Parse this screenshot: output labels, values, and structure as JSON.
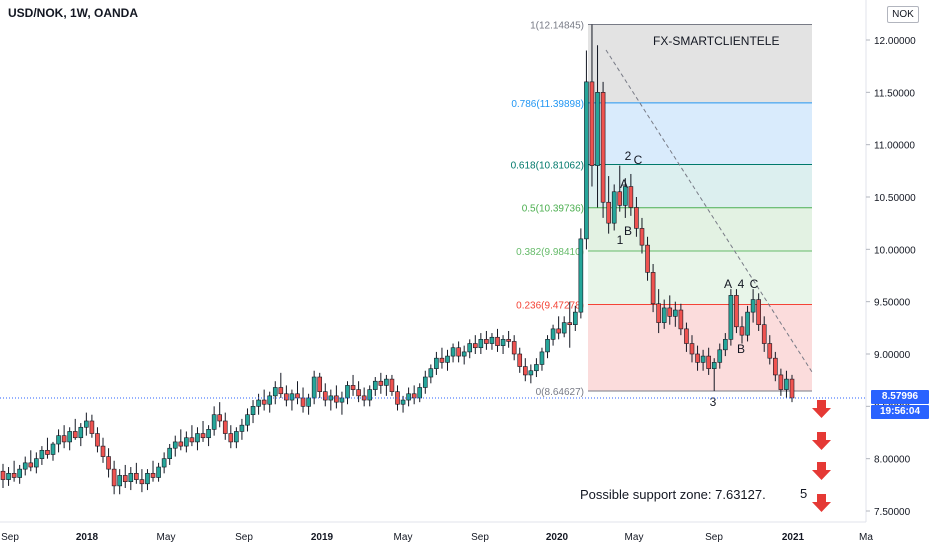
{
  "header": {
    "title": "USD/NOK, 1W, OANDA",
    "currency_badge": "NOK"
  },
  "annotations": {
    "watermark": "FX-SMARTCLIENTELE",
    "support_zone": "Possible support zone: 7.63127.",
    "wave5": "5"
  },
  "price_tags": {
    "last_price": "8.57996",
    "countdown": "19:56:04",
    "color": "#2962ff"
  },
  "colors": {
    "up": "#26a69a",
    "down": "#ef5350",
    "wick": "#131722",
    "arrow": "#e53935"
  },
  "chart_data": {
    "type": "candlestick",
    "title": "USD/NOK, 1W, OANDA",
    "y_axis": {
      "range": [
        7.45,
        12.28
      ],
      "ticks": [
        "12.00000",
        "11.50000",
        "11.00000",
        "10.50000",
        "10.00000",
        "9.50000",
        "9.00000",
        "8.50000",
        "8.00000",
        "7.50000"
      ]
    },
    "x_axis": {
      "ticks": [
        "Sep",
        "2018",
        "May",
        "Sep",
        "2019",
        "May",
        "Sep",
        "2020",
        "May",
        "Sep",
        "2021",
        "Ma"
      ]
    },
    "fibonacci": [
      {
        "ratio": "1",
        "price": 12.14845,
        "label": "1(12.14845)",
        "color": "#787b86",
        "fill": "#e3e3e3"
      },
      {
        "ratio": "0.786",
        "price": 11.39898,
        "label": "0.786(11.39898)",
        "color": "#2196f3",
        "fill": "#d9ebfc"
      },
      {
        "ratio": "0.618",
        "price": 10.81062,
        "label": "0.618(10.81062)",
        "color": "#00796b",
        "fill": "#dcefef"
      },
      {
        "ratio": "0.5",
        "price": 10.39736,
        "label": "0.5(10.39736)",
        "color": "#4caf50",
        "fill": "#e3f2e3"
      },
      {
        "ratio": "0.382",
        "price": 9.9841,
        "label": "0.382(9.98410)",
        "color": "#66bb6a",
        "fill": "#e8f5e9"
      },
      {
        "ratio": "0.236",
        "price": 9.47278,
        "label": "0.236(9.47278)",
        "color": "#f44336",
        "fill": "#fbdcdc"
      },
      {
        "ratio": "0",
        "price": 8.64627,
        "label": "0(8.64627)",
        "color": "#787b86",
        "fill": ""
      }
    ],
    "wave_labels": [
      "2",
      "C",
      "A",
      "B",
      "1",
      "A",
      "4",
      "C",
      "B",
      "3"
    ],
    "support_zone": 7.63127,
    "last_price": 8.57996,
    "candles": [
      {
        "o": 7.88,
        "h": 7.95,
        "l": 7.72,
        "c": 7.8
      },
      {
        "o": 7.8,
        "h": 7.92,
        "l": 7.74,
        "c": 7.86
      },
      {
        "o": 7.86,
        "h": 7.98,
        "l": 7.78,
        "c": 7.82
      },
      {
        "o": 7.82,
        "h": 7.94,
        "l": 7.76,
        "c": 7.9
      },
      {
        "o": 7.9,
        "h": 8.02,
        "l": 7.84,
        "c": 7.96
      },
      {
        "o": 7.96,
        "h": 8.08,
        "l": 7.88,
        "c": 7.92
      },
      {
        "o": 7.92,
        "h": 8.06,
        "l": 7.86,
        "c": 8.0
      },
      {
        "o": 8.0,
        "h": 8.12,
        "l": 7.94,
        "c": 8.08
      },
      {
        "o": 8.08,
        "h": 8.2,
        "l": 8.0,
        "c": 8.04
      },
      {
        "o": 8.04,
        "h": 8.16,
        "l": 7.98,
        "c": 8.14
      },
      {
        "o": 8.14,
        "h": 8.28,
        "l": 8.06,
        "c": 8.22
      },
      {
        "o": 8.22,
        "h": 8.32,
        "l": 8.1,
        "c": 8.16
      },
      {
        "o": 8.16,
        "h": 8.3,
        "l": 8.08,
        "c": 8.26
      },
      {
        "o": 8.26,
        "h": 8.38,
        "l": 8.18,
        "c": 8.2
      },
      {
        "o": 8.2,
        "h": 8.34,
        "l": 8.12,
        "c": 8.3
      },
      {
        "o": 8.3,
        "h": 8.44,
        "l": 8.22,
        "c": 8.36
      },
      {
        "o": 8.36,
        "h": 8.42,
        "l": 8.2,
        "c": 8.24
      },
      {
        "o": 8.24,
        "h": 8.3,
        "l": 8.06,
        "c": 8.12
      },
      {
        "o": 8.12,
        "h": 8.2,
        "l": 7.96,
        "c": 8.02
      },
      {
        "o": 8.02,
        "h": 8.1,
        "l": 7.82,
        "c": 7.9
      },
      {
        "o": 7.9,
        "h": 7.98,
        "l": 7.66,
        "c": 7.74
      },
      {
        "o": 7.74,
        "h": 7.9,
        "l": 7.66,
        "c": 7.84
      },
      {
        "o": 7.84,
        "h": 7.94,
        "l": 7.72,
        "c": 7.78
      },
      {
        "o": 7.78,
        "h": 7.92,
        "l": 7.7,
        "c": 7.86
      },
      {
        "o": 7.86,
        "h": 7.96,
        "l": 7.76,
        "c": 7.8
      },
      {
        "o": 7.8,
        "h": 7.9,
        "l": 7.68,
        "c": 7.76
      },
      {
        "o": 7.76,
        "h": 7.9,
        "l": 7.7,
        "c": 7.86
      },
      {
        "o": 7.86,
        "h": 7.98,
        "l": 7.78,
        "c": 7.82
      },
      {
        "o": 7.82,
        "h": 7.96,
        "l": 7.78,
        "c": 7.92
      },
      {
        "o": 7.92,
        "h": 8.06,
        "l": 7.86,
        "c": 8.0
      },
      {
        "o": 8.0,
        "h": 8.14,
        "l": 7.94,
        "c": 8.1
      },
      {
        "o": 8.1,
        "h": 8.22,
        "l": 8.02,
        "c": 8.16
      },
      {
        "o": 8.16,
        "h": 8.28,
        "l": 8.08,
        "c": 8.12
      },
      {
        "o": 8.12,
        "h": 8.26,
        "l": 8.06,
        "c": 8.2
      },
      {
        "o": 8.2,
        "h": 8.32,
        "l": 8.12,
        "c": 8.16
      },
      {
        "o": 8.16,
        "h": 8.3,
        "l": 8.08,
        "c": 8.24
      },
      {
        "o": 8.24,
        "h": 8.36,
        "l": 8.16,
        "c": 8.2
      },
      {
        "o": 8.2,
        "h": 8.32,
        "l": 8.12,
        "c": 8.28
      },
      {
        "o": 8.28,
        "h": 8.5,
        "l": 8.22,
        "c": 8.42
      },
      {
        "o": 8.42,
        "h": 8.54,
        "l": 8.3,
        "c": 8.36
      },
      {
        "o": 8.36,
        "h": 8.44,
        "l": 8.18,
        "c": 8.24
      },
      {
        "o": 8.24,
        "h": 8.32,
        "l": 8.1,
        "c": 8.16
      },
      {
        "o": 8.16,
        "h": 8.3,
        "l": 8.1,
        "c": 8.26
      },
      {
        "o": 8.26,
        "h": 8.38,
        "l": 8.18,
        "c": 8.32
      },
      {
        "o": 8.32,
        "h": 8.48,
        "l": 8.26,
        "c": 8.42
      },
      {
        "o": 8.42,
        "h": 8.56,
        "l": 8.34,
        "c": 8.5
      },
      {
        "o": 8.5,
        "h": 8.62,
        "l": 8.42,
        "c": 8.56
      },
      {
        "o": 8.56,
        "h": 8.66,
        "l": 8.46,
        "c": 8.52
      },
      {
        "o": 8.52,
        "h": 8.64,
        "l": 8.44,
        "c": 8.6
      },
      {
        "o": 8.6,
        "h": 8.74,
        "l": 8.52,
        "c": 8.68
      },
      {
        "o": 8.68,
        "h": 8.82,
        "l": 8.58,
        "c": 8.62
      },
      {
        "o": 8.62,
        "h": 8.7,
        "l": 8.5,
        "c": 8.56
      },
      {
        "o": 8.56,
        "h": 8.66,
        "l": 8.46,
        "c": 8.62
      },
      {
        "o": 8.62,
        "h": 8.74,
        "l": 8.52,
        "c": 8.58
      },
      {
        "o": 8.58,
        "h": 8.68,
        "l": 8.44,
        "c": 8.5
      },
      {
        "o": 8.5,
        "h": 8.62,
        "l": 8.42,
        "c": 8.58
      },
      {
        "o": 8.58,
        "h": 8.84,
        "l": 8.52,
        "c": 8.78
      },
      {
        "o": 8.78,
        "h": 8.82,
        "l": 8.58,
        "c": 8.64
      },
      {
        "o": 8.64,
        "h": 8.72,
        "l": 8.5,
        "c": 8.56
      },
      {
        "o": 8.56,
        "h": 8.66,
        "l": 8.46,
        "c": 8.6
      },
      {
        "o": 8.6,
        "h": 8.7,
        "l": 8.48,
        "c": 8.54
      },
      {
        "o": 8.54,
        "h": 8.64,
        "l": 8.42,
        "c": 8.58
      },
      {
        "o": 8.58,
        "h": 8.74,
        "l": 8.52,
        "c": 8.7
      },
      {
        "o": 8.7,
        "h": 8.8,
        "l": 8.6,
        "c": 8.66
      },
      {
        "o": 8.66,
        "h": 8.74,
        "l": 8.54,
        "c": 8.6
      },
      {
        "o": 8.6,
        "h": 8.68,
        "l": 8.5,
        "c": 8.56
      },
      {
        "o": 8.56,
        "h": 8.7,
        "l": 8.5,
        "c": 8.66
      },
      {
        "o": 8.66,
        "h": 8.78,
        "l": 8.6,
        "c": 8.74
      },
      {
        "o": 8.74,
        "h": 8.82,
        "l": 8.62,
        "c": 8.7
      },
      {
        "o": 8.7,
        "h": 8.8,
        "l": 8.6,
        "c": 8.76
      },
      {
        "o": 8.76,
        "h": 8.8,
        "l": 8.6,
        "c": 8.64
      },
      {
        "o": 8.64,
        "h": 8.7,
        "l": 8.46,
        "c": 8.52
      },
      {
        "o": 8.52,
        "h": 8.6,
        "l": 8.44,
        "c": 8.56
      },
      {
        "o": 8.56,
        "h": 8.68,
        "l": 8.5,
        "c": 8.62
      },
      {
        "o": 8.62,
        "h": 8.7,
        "l": 8.52,
        "c": 8.58
      },
      {
        "o": 8.58,
        "h": 8.72,
        "l": 8.54,
        "c": 8.68
      },
      {
        "o": 8.68,
        "h": 8.84,
        "l": 8.62,
        "c": 8.78
      },
      {
        "o": 8.78,
        "h": 8.9,
        "l": 8.72,
        "c": 8.86
      },
      {
        "o": 8.86,
        "h": 9.02,
        "l": 8.8,
        "c": 8.96
      },
      {
        "o": 8.96,
        "h": 9.06,
        "l": 8.86,
        "c": 8.92
      },
      {
        "o": 8.92,
        "h": 9.04,
        "l": 8.84,
        "c": 8.98
      },
      {
        "o": 8.98,
        "h": 9.1,
        "l": 8.92,
        "c": 9.06
      },
      {
        "o": 9.06,
        "h": 9.12,
        "l": 8.92,
        "c": 8.98
      },
      {
        "o": 8.98,
        "h": 9.08,
        "l": 8.9,
        "c": 9.02
      },
      {
        "o": 9.02,
        "h": 9.14,
        "l": 8.96,
        "c": 9.1
      },
      {
        "o": 9.1,
        "h": 9.18,
        "l": 9.0,
        "c": 9.06
      },
      {
        "o": 9.06,
        "h": 9.2,
        "l": 9.0,
        "c": 9.14
      },
      {
        "o": 9.14,
        "h": 9.22,
        "l": 9.04,
        "c": 9.1
      },
      {
        "o": 9.1,
        "h": 9.2,
        "l": 9.04,
        "c": 9.16
      },
      {
        "o": 9.16,
        "h": 9.24,
        "l": 9.02,
        "c": 9.08
      },
      {
        "o": 9.08,
        "h": 9.18,
        "l": 9.0,
        "c": 9.14
      },
      {
        "o": 9.14,
        "h": 9.22,
        "l": 9.06,
        "c": 9.12
      },
      {
        "o": 9.12,
        "h": 9.18,
        "l": 8.94,
        "c": 9.0
      },
      {
        "o": 9.0,
        "h": 9.06,
        "l": 8.82,
        "c": 8.88
      },
      {
        "o": 8.88,
        "h": 8.96,
        "l": 8.74,
        "c": 8.8
      },
      {
        "o": 8.8,
        "h": 8.9,
        "l": 8.72,
        "c": 8.84
      },
      {
        "o": 8.84,
        "h": 8.96,
        "l": 8.78,
        "c": 8.9
      },
      {
        "o": 8.9,
        "h": 9.06,
        "l": 8.84,
        "c": 9.02
      },
      {
        "o": 9.02,
        "h": 9.18,
        "l": 8.96,
        "c": 9.14
      },
      {
        "o": 9.14,
        "h": 9.28,
        "l": 9.08,
        "c": 9.24
      },
      {
        "o": 9.24,
        "h": 9.36,
        "l": 9.14,
        "c": 9.2
      },
      {
        "o": 9.2,
        "h": 9.36,
        "l": 9.16,
        "c": 9.3
      },
      {
        "o": 9.3,
        "h": 9.5,
        "l": 9.06,
        "c": 9.28
      },
      {
        "o": 9.28,
        "h": 9.46,
        "l": 9.22,
        "c": 9.4
      },
      {
        "o": 9.4,
        "h": 10.2,
        "l": 9.34,
        "c": 10.1
      },
      {
        "o": 10.1,
        "h": 11.9,
        "l": 10.0,
        "c": 11.6
      },
      {
        "o": 11.6,
        "h": 12.14845,
        "l": 10.6,
        "c": 10.8
      },
      {
        "o": 10.8,
        "h": 11.95,
        "l": 10.4,
        "c": 11.5
      },
      {
        "o": 11.5,
        "h": 11.6,
        "l": 10.3,
        "c": 10.45
      },
      {
        "o": 10.45,
        "h": 10.7,
        "l": 10.15,
        "c": 10.25
      },
      {
        "o": 10.25,
        "h": 10.62,
        "l": 10.18,
        "c": 10.55
      },
      {
        "o": 10.55,
        "h": 10.8,
        "l": 10.36,
        "c": 10.42
      },
      {
        "o": 10.42,
        "h": 10.68,
        "l": 10.3,
        "c": 10.6
      },
      {
        "o": 10.6,
        "h": 10.72,
        "l": 10.32,
        "c": 10.4
      },
      {
        "o": 10.4,
        "h": 10.5,
        "l": 10.12,
        "c": 10.2
      },
      {
        "o": 10.2,
        "h": 10.3,
        "l": 9.96,
        "c": 10.04
      },
      {
        "o": 10.04,
        "h": 10.12,
        "l": 9.7,
        "c": 9.78
      },
      {
        "o": 9.78,
        "h": 9.86,
        "l": 9.4,
        "c": 9.48
      },
      {
        "o": 9.48,
        "h": 9.62,
        "l": 9.2,
        "c": 9.3
      },
      {
        "o": 9.3,
        "h": 9.52,
        "l": 9.24,
        "c": 9.44
      },
      {
        "o": 9.44,
        "h": 9.56,
        "l": 9.28,
        "c": 9.36
      },
      {
        "o": 9.36,
        "h": 9.5,
        "l": 9.26,
        "c": 9.42
      },
      {
        "o": 9.42,
        "h": 9.48,
        "l": 9.18,
        "c": 9.24
      },
      {
        "o": 9.24,
        "h": 9.3,
        "l": 9.02,
        "c": 9.1
      },
      {
        "o": 9.1,
        "h": 9.18,
        "l": 8.92,
        "c": 9.0
      },
      {
        "o": 9.0,
        "h": 9.08,
        "l": 8.84,
        "c": 8.92
      },
      {
        "o": 8.92,
        "h": 9.04,
        "l": 8.84,
        "c": 8.98
      },
      {
        "o": 8.98,
        "h": 9.06,
        "l": 8.8,
        "c": 8.86
      },
      {
        "o": 8.86,
        "h": 8.96,
        "l": 8.64627,
        "c": 8.92
      },
      {
        "o": 8.92,
        "h": 9.1,
        "l": 8.86,
        "c": 9.04
      },
      {
        "o": 9.04,
        "h": 9.2,
        "l": 8.98,
        "c": 9.14
      },
      {
        "o": 9.14,
        "h": 9.62,
        "l": 9.08,
        "c": 9.56
      },
      {
        "o": 9.56,
        "h": 9.62,
        "l": 9.2,
        "c": 9.26
      },
      {
        "o": 9.26,
        "h": 9.36,
        "l": 9.1,
        "c": 9.18
      },
      {
        "o": 9.18,
        "h": 9.46,
        "l": 9.12,
        "c": 9.4
      },
      {
        "o": 9.4,
        "h": 9.62,
        "l": 9.3,
        "c": 9.52
      },
      {
        "o": 9.52,
        "h": 9.58,
        "l": 9.22,
        "c": 9.28
      },
      {
        "o": 9.28,
        "h": 9.36,
        "l": 9.02,
        "c": 9.1
      },
      {
        "o": 9.1,
        "h": 9.18,
        "l": 8.9,
        "c": 8.96
      },
      {
        "o": 8.96,
        "h": 9.02,
        "l": 8.74,
        "c": 8.8
      },
      {
        "o": 8.8,
        "h": 8.86,
        "l": 8.6,
        "c": 8.66
      },
      {
        "o": 8.66,
        "h": 8.84,
        "l": 8.58,
        "c": 8.76
      },
      {
        "o": 8.76,
        "h": 8.8,
        "l": 8.54,
        "c": 8.58
      }
    ]
  }
}
